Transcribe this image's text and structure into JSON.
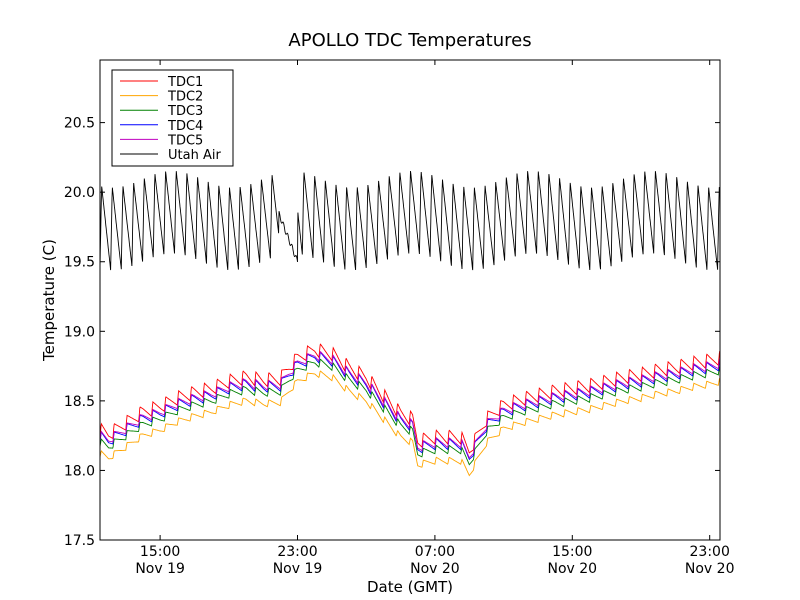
{
  "chart_data": {
    "type": "line",
    "title": "APOLLO TDC Temperatures",
    "xlabel": "Date (GMT)",
    "ylabel": "Temperature (C)",
    "x_unit": "hours since Nov 19 00:00 GMT",
    "xlim": [
      11.5,
      47.6
    ],
    "ylim": [
      17.5,
      20.95
    ],
    "grid": false,
    "legend_position": "top-left",
    "y_ticks": [
      17.5,
      18.0,
      18.5,
      19.0,
      19.5,
      20.0,
      20.5
    ],
    "y_tick_labels": [
      "17.5",
      "18.0",
      "18.5",
      "19.0",
      "19.5",
      "20.0",
      "20.5"
    ],
    "x_ticks": [
      {
        "value": 15,
        "time": "15:00",
        "date": "Nov 19"
      },
      {
        "value": 23,
        "time": "23:00",
        "date": "Nov 19"
      },
      {
        "value": 31,
        "time": "07:00",
        "date": "Nov 20"
      },
      {
        "value": 39,
        "time": "15:00",
        "date": "Nov 20"
      },
      {
        "value": 47,
        "time": "23:00",
        "date": "Nov 20"
      }
    ],
    "series": [
      {
        "name": "TDC1",
        "color": "#ff0000",
        "offset": 0.09,
        "ripple": 0.1
      },
      {
        "name": "TDC2",
        "color": "#ffa500",
        "offset": -0.08,
        "ripple": 0.05
      },
      {
        "name": "TDC3",
        "color": "#008000",
        "offset": 0.0,
        "ripple": 0.06
      },
      {
        "name": "TDC4",
        "color": "#0000ff",
        "offset": 0.04,
        "ripple": 0.08
      },
      {
        "name": "TDC5",
        "color": "#bf00bf",
        "offset": 0.05,
        "ripple": 0.07
      },
      {
        "name": "Utah Air",
        "color": "#000000",
        "low": 19.5,
        "high": 20.1,
        "period_hours": 0.62
      }
    ],
    "tdc_baseline": {
      "x": [
        11.5,
        12.0,
        13.0,
        14.0,
        15.0,
        16.0,
        17.0,
        18.0,
        19.0,
        20.0,
        21.0,
        22.0,
        22.5,
        23.0,
        24.0,
        25.0,
        26.0,
        27.0,
        28.0,
        29.0,
        29.7,
        30.0,
        31.0,
        32.0,
        32.5,
        33.0,
        34.0,
        35.0,
        36.0,
        37.0,
        38.0,
        39.0,
        40.0,
        41.0,
        42.0,
        43.0,
        44.0,
        45.0,
        46.0,
        47.0,
        47.6
      ],
      "y": [
        18.2,
        18.17,
        18.25,
        18.33,
        18.37,
        18.43,
        18.47,
        18.5,
        18.55,
        18.58,
        18.56,
        18.57,
        18.65,
        18.72,
        18.78,
        18.75,
        18.65,
        18.58,
        18.45,
        18.32,
        18.28,
        18.12,
        18.15,
        18.15,
        18.15,
        18.05,
        18.28,
        18.38,
        18.42,
        18.45,
        18.48,
        18.5,
        18.52,
        18.55,
        18.58,
        18.6,
        18.63,
        18.65,
        18.68,
        18.7,
        18.72
      ]
    },
    "air_gap": {
      "x_start": 21.9,
      "x_end": 23.0,
      "y_start": 19.85,
      "y_end": 19.5
    }
  }
}
